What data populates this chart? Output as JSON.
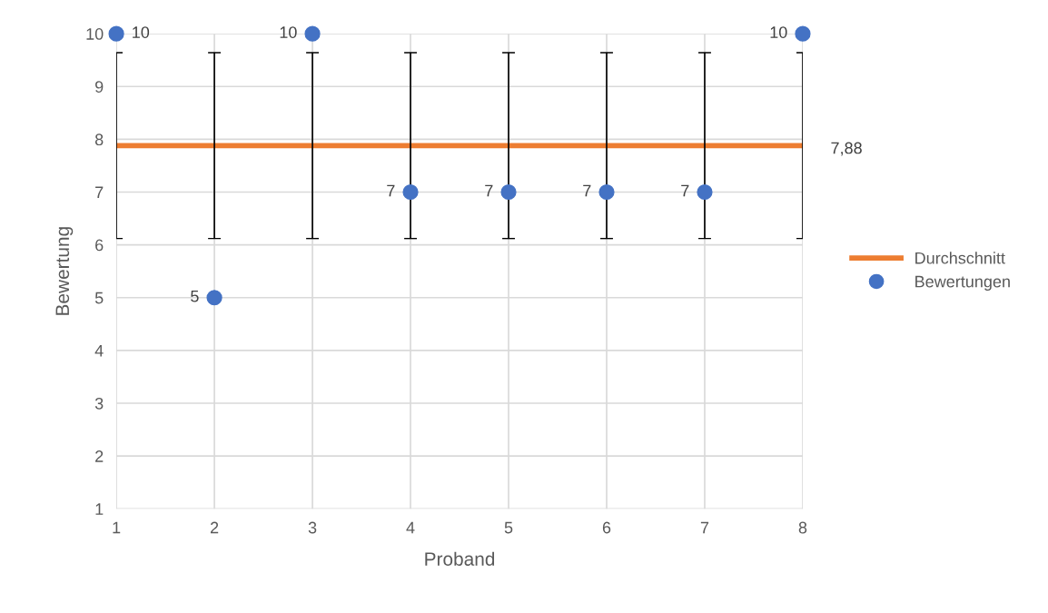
{
  "chart_data": {
    "type": "scatter",
    "xlabel": "Proband",
    "ylabel": "Bewertung",
    "x": [
      1,
      2,
      3,
      4,
      5,
      6,
      7,
      8
    ],
    "series": [
      {
        "name": "Durchschnitt",
        "type": "line",
        "color": "#ed7d31",
        "marker": "none",
        "values": [
          7.88,
          7.88,
          7.88,
          7.88,
          7.88,
          7.88,
          7.88,
          7.88
        ],
        "errors": [
          1.76,
          1.76,
          1.76,
          1.76,
          1.76,
          1.76,
          1.76,
          1.76
        ],
        "value_labels": [
          null,
          null,
          null,
          null,
          null,
          null,
          null,
          "7,88"
        ]
      },
      {
        "name": "Bewertungen",
        "color": "#4472c4",
        "marker": "circle",
        "values": [
          10,
          5,
          10,
          7,
          7,
          7,
          7,
          10
        ],
        "value_labels": [
          "10",
          "5",
          "10",
          "7",
          "7",
          "7",
          "7",
          "10"
        ]
      }
    ],
    "xlim": [
      1,
      8
    ],
    "xticks": [
      1,
      2,
      3,
      4,
      5,
      6,
      7,
      8
    ],
    "ylim": [
      1,
      10
    ],
    "yticks": [
      1,
      2,
      3,
      4,
      5,
      6,
      7,
      8,
      9,
      10
    ],
    "grid": true,
    "legend": "right"
  }
}
